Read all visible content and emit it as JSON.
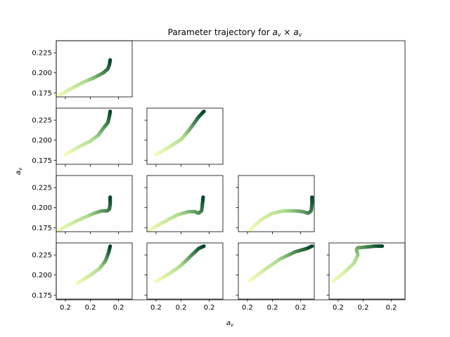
{
  "chart_data": {
    "type": "scatter",
    "title": {
      "prefix": "Parameter trajectory for ",
      "math": "a",
      "sub": "v",
      "times": " × ",
      "math2": "a",
      "sub2": "v"
    },
    "xlabel": {
      "math": "a",
      "sub": "v"
    },
    "ylabel": {
      "math": "a",
      "sub": "v"
    },
    "layout": "lower-triangular 4x4 pair grid with outer frame",
    "ylim": [
      0.17,
      0.24
    ],
    "yticks": [
      "0.175",
      "0.200",
      "0.225"
    ],
    "xtick_labels": [
      "0.2",
      "0.2",
      "0.2"
    ],
    "colormap": {
      "start": "#f7fcb9",
      "mid": "#addd8e",
      "end": "#004529"
    },
    "panels": [
      {
        "row": 0,
        "col": 0,
        "trajectory": [
          [
            0.0,
            0.17
          ],
          [
            0.15,
            0.178
          ],
          [
            0.35,
            0.188
          ],
          [
            0.5,
            0.194
          ],
          [
            0.62,
            0.2
          ],
          [
            0.68,
            0.205
          ],
          [
            0.7,
            0.21
          ],
          [
            0.71,
            0.216
          ]
        ]
      },
      {
        "row": 1,
        "col": 0,
        "trajectory": [
          [
            0.12,
            0.182
          ],
          [
            0.3,
            0.192
          ],
          [
            0.45,
            0.199
          ],
          [
            0.55,
            0.206
          ],
          [
            0.62,
            0.215
          ],
          [
            0.68,
            0.222
          ],
          [
            0.7,
            0.23
          ],
          [
            0.71,
            0.236
          ]
        ]
      },
      {
        "row": 1,
        "col": 1,
        "trajectory": [
          [
            0.12,
            0.182
          ],
          [
            0.3,
            0.192
          ],
          [
            0.45,
            0.201
          ],
          [
            0.55,
            0.212
          ],
          [
            0.62,
            0.221
          ],
          [
            0.68,
            0.229
          ],
          [
            0.72,
            0.233
          ],
          [
            0.75,
            0.236
          ]
        ]
      },
      {
        "row": 2,
        "col": 0,
        "trajectory": [
          [
            0.0,
            0.17
          ],
          [
            0.15,
            0.178
          ],
          [
            0.35,
            0.187
          ],
          [
            0.5,
            0.193
          ],
          [
            0.6,
            0.196
          ],
          [
            0.67,
            0.196
          ],
          [
            0.7,
            0.198
          ],
          [
            0.71,
            0.204
          ],
          [
            0.71,
            0.213
          ]
        ]
      },
      {
        "row": 2,
        "col": 1,
        "trajectory": [
          [
            0.0,
            0.17
          ],
          [
            0.2,
            0.181
          ],
          [
            0.4,
            0.191
          ],
          [
            0.55,
            0.195
          ],
          [
            0.63,
            0.195
          ],
          [
            0.68,
            0.193
          ],
          [
            0.72,
            0.196
          ],
          [
            0.73,
            0.204
          ],
          [
            0.74,
            0.213
          ]
        ]
      },
      {
        "row": 2,
        "col": 2,
        "trajectory": [
          [
            0.15,
            0.172
          ],
          [
            0.3,
            0.185
          ],
          [
            0.45,
            0.193
          ],
          [
            0.6,
            0.196
          ],
          [
            0.75,
            0.196
          ],
          [
            0.85,
            0.195
          ],
          [
            0.92,
            0.193
          ],
          [
            0.96,
            0.196
          ],
          [
            0.97,
            0.205
          ],
          [
            0.97,
            0.213
          ]
        ]
      },
      {
        "row": 3,
        "col": 0,
        "trajectory": [
          [
            0.28,
            0.19
          ],
          [
            0.45,
            0.2
          ],
          [
            0.57,
            0.208
          ],
          [
            0.65,
            0.218
          ],
          [
            0.69,
            0.228
          ],
          [
            0.71,
            0.236
          ]
        ]
      },
      {
        "row": 3,
        "col": 1,
        "trajectory": [
          [
            0.12,
            0.192
          ],
          [
            0.3,
            0.202
          ],
          [
            0.45,
            0.212
          ],
          [
            0.58,
            0.224
          ],
          [
            0.68,
            0.233
          ],
          [
            0.75,
            0.236
          ]
        ]
      },
      {
        "row": 3,
        "col": 2,
        "trajectory": [
          [
            0.15,
            0.193
          ],
          [
            0.35,
            0.207
          ],
          [
            0.55,
            0.22
          ],
          [
            0.75,
            0.229
          ],
          [
            0.9,
            0.233
          ],
          [
            0.97,
            0.236
          ]
        ]
      },
      {
        "row": 3,
        "col": 3,
        "trajectory": [
          [
            0.05,
            0.192
          ],
          [
            0.22,
            0.205
          ],
          [
            0.33,
            0.215
          ],
          [
            0.38,
            0.225
          ],
          [
            0.36,
            0.232
          ],
          [
            0.38,
            0.234
          ],
          [
            0.5,
            0.235
          ],
          [
            0.6,
            0.236
          ],
          [
            0.7,
            0.236
          ]
        ]
      }
    ]
  }
}
